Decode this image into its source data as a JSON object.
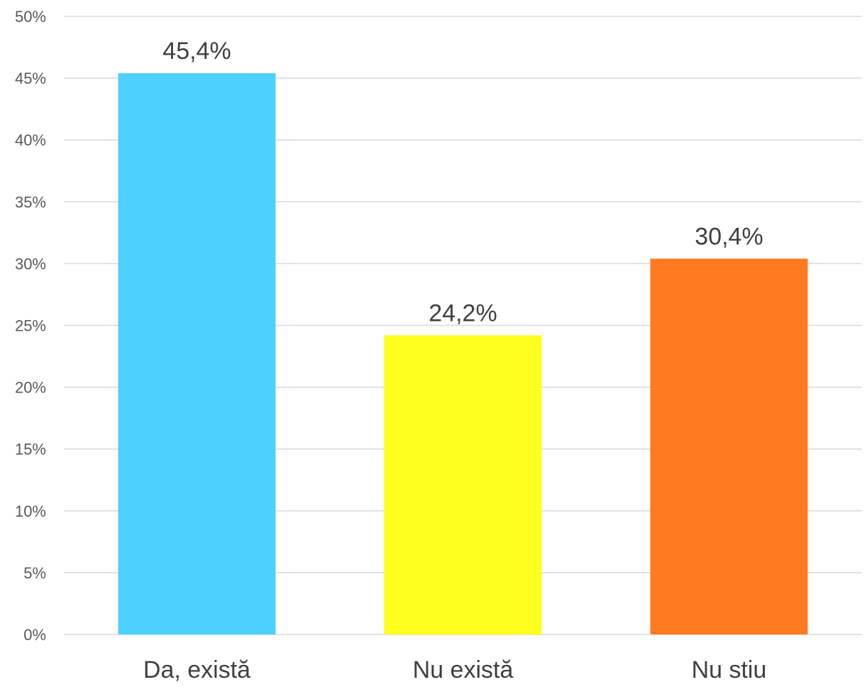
{
  "chart_data": {
    "type": "bar",
    "categories": [
      "Da, există",
      "Nu există",
      "Nu stiu"
    ],
    "values": [
      45.4,
      24.2,
      30.4
    ],
    "data_labels": [
      "45,4%",
      "24,2%",
      "30,4%"
    ],
    "colors": [
      "#4dd0ff",
      "#ffff1f",
      "#ff7b21"
    ],
    "title": "",
    "xlabel": "",
    "ylabel": "",
    "ylim": [
      0,
      50
    ],
    "y_ticks": [
      0,
      5,
      10,
      15,
      20,
      25,
      30,
      35,
      40,
      45,
      50
    ],
    "y_tick_labels": [
      "0%",
      "5%",
      "10%",
      "15%",
      "20%",
      "25%",
      "30%",
      "35%",
      "40%",
      "45%",
      "50%"
    ],
    "grid": true,
    "legend": "none"
  }
}
